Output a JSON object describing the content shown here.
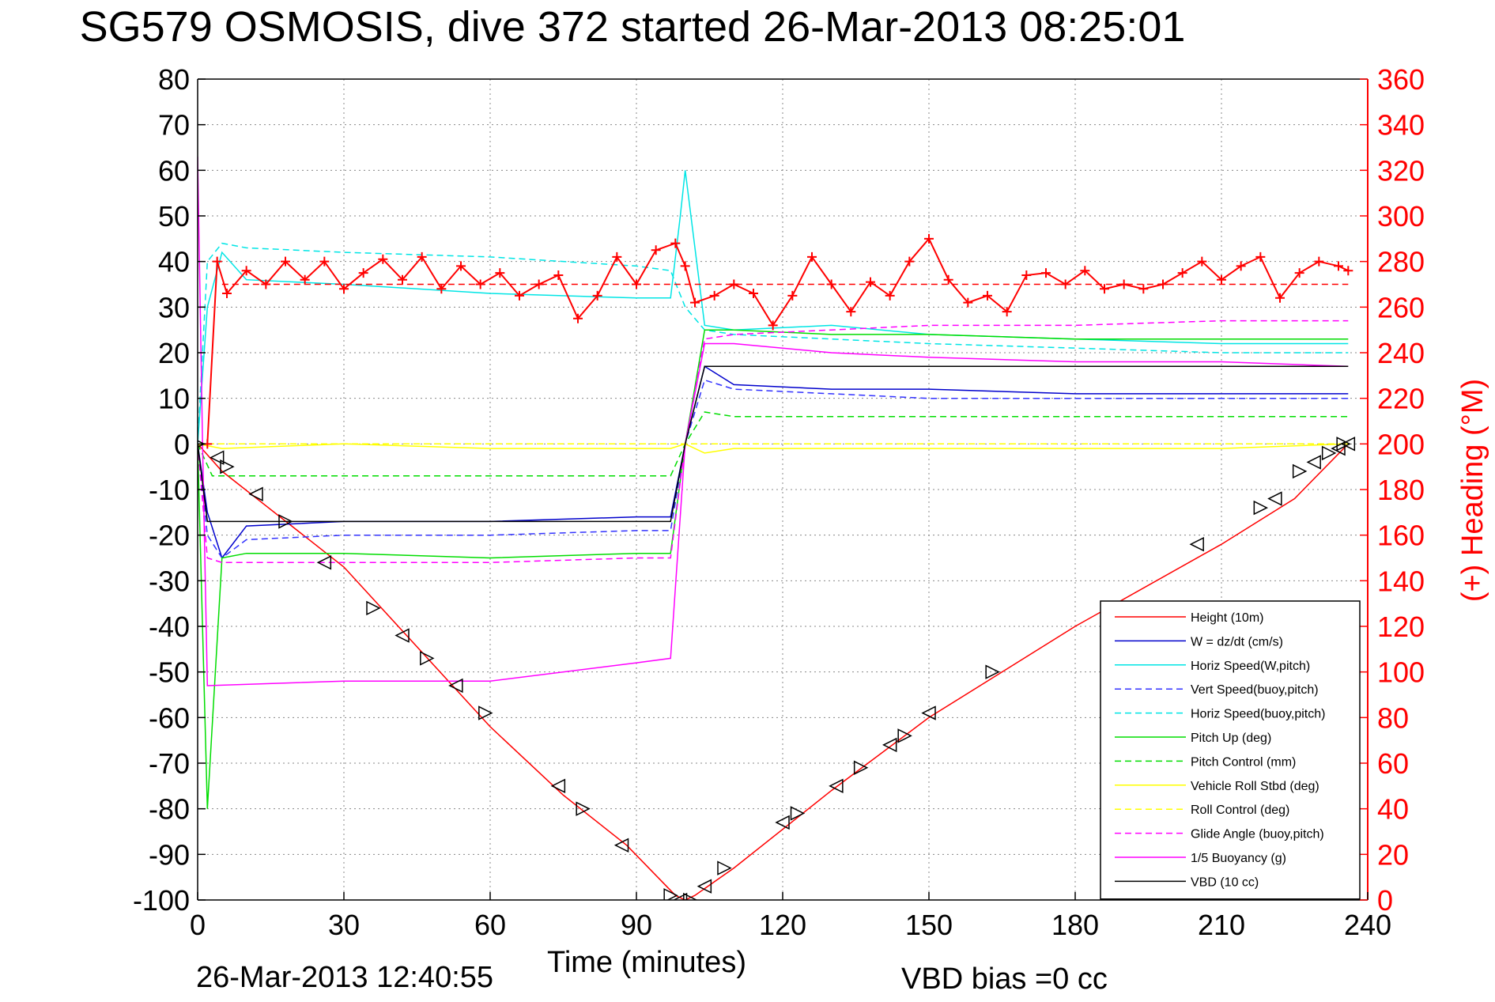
{
  "chart_data": {
    "type": "line",
    "title": "SG579 OSMOSIS, dive 372 started 26-Mar-2013 08:25:01",
    "xlabel": "Time (minutes)",
    "ylabel_right": "(+) Heading (°M)",
    "footer_left": "26-Mar-2013 12:40:55",
    "footer_right": "VBD bias =0 cc",
    "xlim": [
      0,
      240
    ],
    "ylim": [
      -100,
      80
    ],
    "ylim_right": [
      0,
      360
    ],
    "x_ticks": [
      "0",
      "30",
      "60",
      "90",
      "120",
      "150",
      "180",
      "210",
      "240"
    ],
    "y_ticks": [
      "80",
      "70",
      "60",
      "50",
      "40",
      "30",
      "20",
      "10",
      "0",
      "-10",
      "-20",
      "-30",
      "-40",
      "-50",
      "-60",
      "-70",
      "-80",
      "-90",
      "-100"
    ],
    "y_right_ticks": [
      "360",
      "340",
      "320",
      "300",
      "280",
      "260",
      "240",
      "220",
      "200",
      "180",
      "160",
      "140",
      "120",
      "100",
      "80",
      "60",
      "40",
      "20",
      "0"
    ],
    "grid": true,
    "legend_position": "bottom-right",
    "colors": {
      "height": "#ff0000",
      "w": "#0000cc",
      "horiz_w": "#00e5e5",
      "vert_buoy": "#3333ff",
      "horiz_buoy": "#00e5e5",
      "pitch": "#00dd00",
      "pitch_ctrl": "#00dd00",
      "roll": "#ffff00",
      "roll_ctrl": "#ffff00",
      "glide": "#ff00ff",
      "buoyancy": "#ff00ff",
      "vbd": "#000000",
      "heading": "#ff0000",
      "right_axis": "#ff0000"
    },
    "series": [
      {
        "name": "Height (10m)",
        "style": "solid",
        "color": "#ff0000",
        "x": [
          0,
          5,
          30,
          60,
          75,
          88,
          98,
          100,
          102,
          110,
          130,
          150,
          180,
          210,
          225,
          236
        ],
        "y": [
          0,
          -6,
          -27,
          -62,
          -77,
          -88,
          -99,
          -100,
          -99,
          -93,
          -76,
          -60,
          -40,
          -22,
          -12,
          0
        ]
      },
      {
        "name": "W = dz/dt (cm/s)",
        "style": "solid",
        "color": "#0000cc",
        "x": [
          0,
          2,
          5,
          10,
          30,
          60,
          90,
          97,
          100,
          104,
          110,
          130,
          150,
          180,
          210,
          236
        ],
        "y": [
          0,
          -15,
          -25,
          -18,
          -17,
          -17,
          -16,
          -16,
          0,
          17,
          13,
          12,
          12,
          11,
          11,
          11
        ]
      },
      {
        "name": "Horiz Speed(W,pitch)",
        "style": "solid",
        "color": "#00e5e5",
        "x": [
          0,
          2,
          5,
          10,
          30,
          60,
          90,
          97,
          99,
          100,
          104,
          110,
          130,
          150,
          180,
          210,
          236
        ],
        "y": [
          0,
          30,
          42,
          36,
          35,
          33,
          32,
          32,
          50,
          60,
          26,
          25,
          26,
          24,
          23,
          22,
          22
        ]
      },
      {
        "name": "Vert Speed(buoy,pitch)",
        "style": "dashed",
        "color": "#3333ff",
        "x": [
          0,
          2,
          5,
          10,
          30,
          60,
          90,
          97,
          100,
          104,
          110,
          130,
          150,
          180,
          210,
          236
        ],
        "y": [
          0,
          -20,
          -25,
          -21,
          -20,
          -20,
          -19,
          -19,
          0,
          14,
          12,
          11,
          10,
          10,
          10,
          10
        ]
      },
      {
        "name": "Horiz Speed(buoy,pitch)",
        "style": "dashed",
        "color": "#00e5e5",
        "x": [
          0,
          2,
          5,
          10,
          30,
          60,
          90,
          97,
          100,
          104,
          110,
          130,
          150,
          180,
          210,
          236
        ],
        "y": [
          0,
          40,
          44,
          43,
          42,
          41,
          39,
          38,
          30,
          25,
          24,
          23,
          22,
          21,
          20,
          20
        ]
      },
      {
        "name": "Pitch Up (deg)",
        "style": "solid",
        "color": "#00dd00",
        "x": [
          0,
          2,
          5,
          10,
          30,
          60,
          90,
          97,
          100,
          104,
          110,
          130,
          150,
          180,
          210,
          236
        ],
        "y": [
          0,
          -80,
          -25,
          -24,
          -24,
          -25,
          -24,
          -24,
          0,
          25,
          25,
          24,
          24,
          23,
          23,
          23
        ]
      },
      {
        "name": "Pitch Control (mm)",
        "style": "dashed",
        "color": "#00dd00",
        "x": [
          0,
          3,
          10,
          30,
          60,
          90,
          97,
          100,
          104,
          110,
          130,
          150,
          180,
          210,
          236
        ],
        "y": [
          0,
          -7,
          -7,
          -7,
          -7,
          -7,
          -7,
          0,
          7,
          6,
          6,
          6,
          6,
          6,
          6
        ]
      },
      {
        "name": "Vehicle Roll Stbd (deg)",
        "style": "solid",
        "color": "#ffff00",
        "x": [
          0,
          5,
          30,
          60,
          90,
          97,
          100,
          104,
          110,
          130,
          150,
          180,
          210,
          236
        ],
        "y": [
          0,
          -1,
          0,
          -1,
          -1,
          -1,
          0,
          -2,
          -1,
          -1,
          -1,
          -1,
          -1,
          0
        ]
      },
      {
        "name": "Roll Control (deg)",
        "style": "dashed",
        "color": "#ffff00",
        "x": [
          0,
          5,
          30,
          60,
          90,
          97,
          100,
          104,
          110,
          130,
          150,
          180,
          210,
          236
        ],
        "y": [
          0,
          0,
          0,
          0,
          0,
          0,
          0,
          0,
          0,
          0,
          0,
          0,
          0,
          0
        ]
      },
      {
        "name": "Glide Angle (buoy,pitch)",
        "style": "dashed",
        "color": "#ff00ff",
        "x": [
          0,
          2,
          5,
          10,
          30,
          60,
          90,
          97,
          100,
          104,
          110,
          130,
          150,
          180,
          210,
          236
        ],
        "y": [
          0,
          -25,
          -26,
          -26,
          -26,
          -26,
          -25,
          -25,
          0,
          23,
          24,
          25,
          26,
          26,
          27,
          27
        ]
      },
      {
        "name": "1/5 Buoyancy (g)",
        "style": "solid",
        "color": "#ff00ff",
        "x": [
          0,
          1,
          2,
          30,
          60,
          90,
          97,
          100,
          104,
          110,
          130,
          150,
          180,
          210,
          236
        ],
        "y": [
          63,
          0,
          -53,
          -52,
          -52,
          -48,
          -47,
          0,
          22,
          22,
          20,
          19,
          18,
          18,
          17
        ]
      },
      {
        "name": "VBD (10 cc)",
        "style": "solid",
        "color": "#000000",
        "x": [
          0,
          2,
          30,
          60,
          90,
          97,
          100,
          104,
          110,
          150,
          180,
          210,
          236
        ],
        "y": [
          0,
          -17,
          -17,
          -17,
          -17,
          -17,
          0,
          17,
          17,
          17,
          17,
          17,
          17
        ]
      }
    ],
    "heading_series": {
      "axis": "right",
      "color": "#ff0000",
      "x": [
        2,
        4,
        6,
        10,
        14,
        18,
        22,
        26,
        30,
        34,
        38,
        42,
        46,
        50,
        54,
        58,
        62,
        66,
        70,
        74,
        78,
        82,
        86,
        90,
        94,
        98,
        100,
        102,
        106,
        110,
        114,
        118,
        122,
        126,
        130,
        134,
        138,
        142,
        146,
        150,
        154,
        158,
        162,
        166,
        170,
        174,
        178,
        182,
        186,
        190,
        194,
        198,
        202,
        206,
        210,
        214,
        218,
        222,
        226,
        230,
        234,
        236
      ],
      "y": [
        200,
        280,
        266,
        276,
        270,
        280,
        272,
        280,
        268,
        275,
        281,
        272,
        282,
        268,
        278,
        270,
        275,
        265,
        270,
        274,
        255,
        265,
        282,
        270,
        285,
        288,
        278,
        262,
        265,
        270,
        266,
        252,
        265,
        282,
        270,
        258,
        271,
        265,
        280,
        290,
        272,
        262,
        265,
        258,
        274,
        275,
        270,
        276,
        268,
        270,
        268,
        270,
        275,
        280,
        272,
        278,
        282,
        264,
        275,
        280,
        278,
        276
      ]
    },
    "heading_reference": {
      "value": 270,
      "color": "#ff0000",
      "style": "dashed"
    },
    "triangle_markers": {
      "color": "#000000",
      "x": [
        0,
        4,
        6,
        12,
        18,
        26,
        36,
        42,
        47,
        53,
        59,
        74,
        79,
        87,
        97,
        99,
        101,
        104,
        108,
        120,
        123,
        131,
        136,
        142,
        145,
        150,
        163,
        205,
        218,
        221,
        226,
        229,
        232,
        234,
        235,
        236
      ],
      "y": [
        0,
        -3,
        -5,
        -11,
        -17,
        -26,
        -36,
        -42,
        -47,
        -53,
        -59,
        -75,
        -80,
        -88,
        -99,
        -100,
        -100,
        -97,
        -93,
        -83,
        -81,
        -75,
        -71,
        -66,
        -64,
        -59,
        -50,
        -22,
        -14,
        -12,
        -6,
        -4,
        -2,
        -1,
        0,
        0
      ]
    }
  }
}
